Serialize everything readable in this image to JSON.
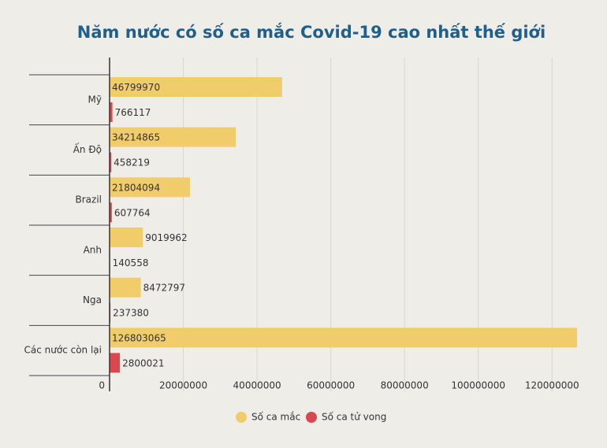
{
  "chart_data": {
    "type": "bar",
    "orientation": "horizontal",
    "title": "Năm nước có số ca mắc Covid-19 cao nhất thế giới",
    "categories": [
      "Mỹ",
      "Ấn Độ",
      "Brazil",
      "Anh",
      "Nga",
      "Các nước còn lại"
    ],
    "series": [
      {
        "name": "Số ca mắc",
        "color": "#f0cc6b",
        "values": [
          46799970,
          34214865,
          21804094,
          9019962,
          8472797,
          126803065
        ]
      },
      {
        "name": "Số ca tử vong",
        "color": "#d9474f",
        "values": [
          766117,
          458219,
          607764,
          140558,
          237380,
          2800021
        ]
      }
    ],
    "xlim": [
      0,
      127000000
    ],
    "xticks": [
      0,
      20000000,
      40000000,
      60000000,
      80000000,
      100000000,
      120000000
    ],
    "grid": true,
    "legend": "bottom"
  }
}
